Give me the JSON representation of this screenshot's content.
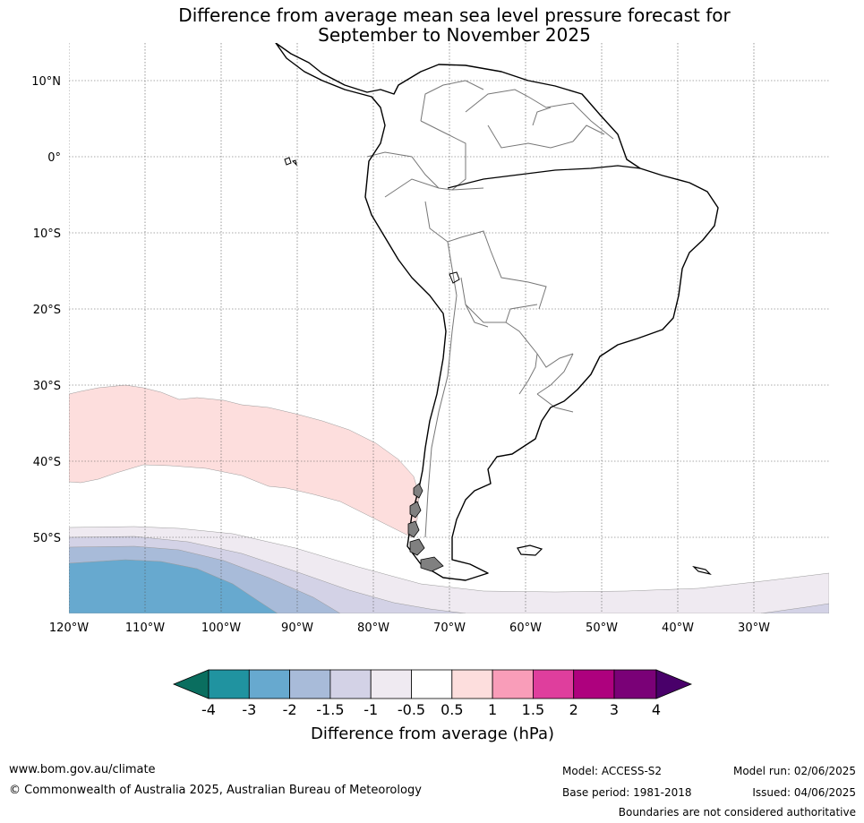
{
  "title": {
    "line1": "Difference from average mean sea level pressure forecast for",
    "line2": "September to November 2025"
  },
  "map": {
    "lat_labels": [
      "10°N",
      "0°",
      "10°S",
      "20°S",
      "30°S",
      "40°S",
      "50°S"
    ],
    "lon_labels": [
      "120°W",
      "110°W",
      "100°W",
      "90°W",
      "80°W",
      "70°W",
      "60°W",
      "50°W",
      "40°W",
      "30°W"
    ],
    "anomaly_colors": {
      "pos_0_5_1": "#fddedd",
      "neg_0_5_1": "#efeaf1",
      "neg_1_1_5": "#d3d2e6",
      "neg_1_5_2": "#a8bbd9",
      "neg_2_3": "#67a9cf"
    }
  },
  "colorbar": {
    "label": "Difference from average (hPa)",
    "ticks": [
      "-4",
      "-3",
      "-2",
      "-1.5",
      "-1",
      "-0.5",
      "0.5",
      "1",
      "1.5",
      "2",
      "3",
      "4"
    ],
    "colors": [
      "#0a6e5f",
      "#2093a0",
      "#67a9cf",
      "#a8bbd9",
      "#d3d2e6",
      "#efeaf1",
      "#ffffff",
      "#fddedd",
      "#f99db9",
      "#df3e9d",
      "#ae017e",
      "#7a0177",
      "#49006a"
    ]
  },
  "footer": {
    "website": "www.bom.gov.au/climate",
    "copyright": "© Commonwealth of Australia 2025, Australian Bureau of Meteorology",
    "model": "Model: ACCESS-S2",
    "base_period": "Base period: 1981-2018",
    "model_run": "Model run: 02/06/2025",
    "issued": "Issued: 04/06/2025",
    "disclaimer": "Boundaries are not considered authoritative"
  }
}
